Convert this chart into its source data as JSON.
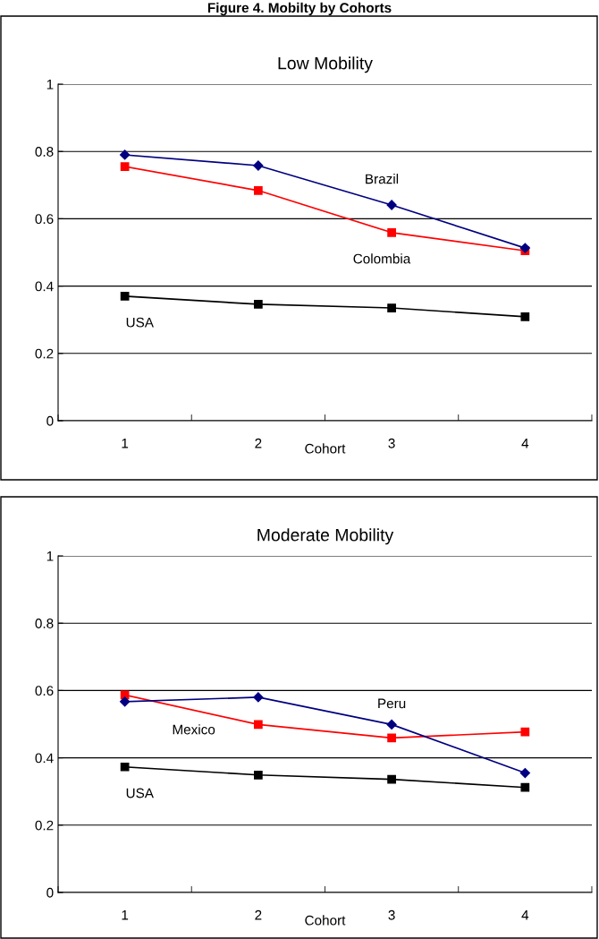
{
  "chart_data": [
    {
      "type": "line",
      "title": "Low Mobility",
      "xlabel": "Cohort",
      "categories": [
        "1",
        "2",
        "3",
        "4"
      ],
      "series": [
        {
          "name": "Brazil",
          "color": "#000080",
          "marker": "diamond",
          "values": [
            0.79,
            0.758,
            0.641,
            0.513
          ]
        },
        {
          "name": "Colombia",
          "color": "#ff0000",
          "marker": "square",
          "values": [
            0.755,
            0.684,
            0.559,
            0.505
          ]
        },
        {
          "name": "USA",
          "color": "#000000",
          "marker": "square",
          "values": [
            0.37,
            0.346,
            0.335,
            0.309
          ]
        }
      ],
      "ylim": [
        0,
        1
      ],
      "yticks": [
        0,
        0.2,
        0.4,
        0.6,
        0.8,
        1
      ],
      "grid": "y",
      "legend": false,
      "annotations": [
        "Figure 4. Mobilty by Cohorts"
      ]
    },
    {
      "type": "line",
      "title": "Moderate Mobility",
      "xlabel": "Cohort",
      "categories": [
        "1",
        "2",
        "3",
        "4"
      ],
      "series": [
        {
          "name": "Peru",
          "color": "#000080",
          "marker": "diamond",
          "values": [
            0.567,
            0.58,
            0.499,
            0.355
          ]
        },
        {
          "name": "Mexico",
          "color": "#ff0000",
          "marker": "square",
          "values": [
            0.587,
            0.499,
            0.459,
            0.477
          ]
        },
        {
          "name": "USA",
          "color": "#000000",
          "marker": "square",
          "values": [
            0.373,
            0.349,
            0.336,
            0.312
          ]
        }
      ],
      "ylim": [
        0,
        1
      ],
      "yticks": [
        0,
        0.2,
        0.4,
        0.6,
        0.8,
        1
      ],
      "grid": "y",
      "legend": false
    }
  ]
}
